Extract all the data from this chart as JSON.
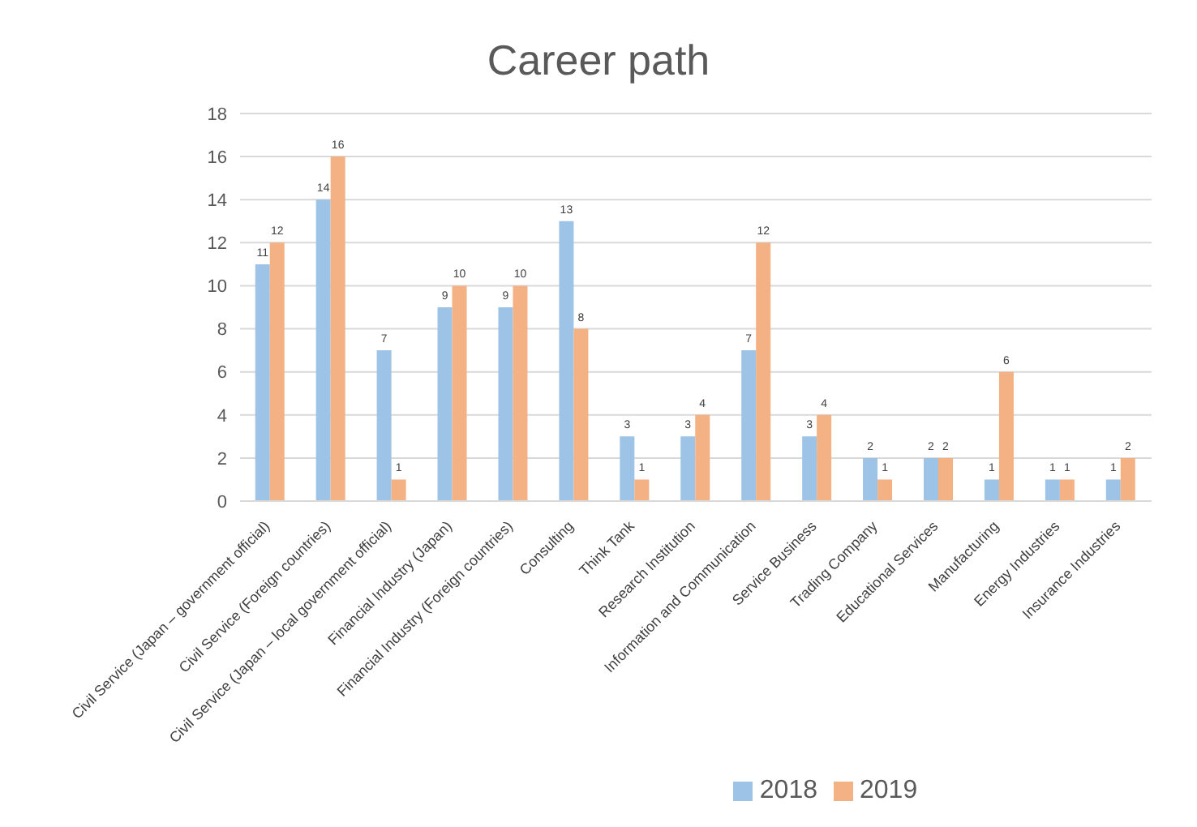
{
  "chart_data": {
    "type": "bar",
    "title": "Career path",
    "categories": [
      "Civil Service (Japan – government official)",
      "Civil Service (Foreign countries)",
      "Civil Service (Japan – local government official)",
      "Financial Industry (Japan)",
      "Financial Industry (Foreign countries)",
      "Consulting",
      "Think Tank",
      "Research Institution",
      "Information and Communication",
      "Service Business",
      "Trading Company",
      "Educational Services",
      "Manufacturing",
      "Energy Industries",
      "Insurance Industries"
    ],
    "series": [
      {
        "name": "2018",
        "color": "#9dc3e6",
        "values": [
          11,
          14,
          7,
          9,
          9,
          13,
          3,
          3,
          7,
          3,
          2,
          2,
          1,
          1,
          1
        ]
      },
      {
        "name": "2019",
        "color": "#f4b183",
        "values": [
          12,
          16,
          1,
          10,
          10,
          8,
          1,
          4,
          12,
          4,
          1,
          2,
          6,
          1,
          2
        ]
      }
    ],
    "ylim": [
      0,
      18
    ],
    "yticks": [
      0,
      2,
      4,
      6,
      8,
      10,
      12,
      14,
      16,
      18
    ],
    "grid": "y",
    "legend": "bottom",
    "data_labels": true
  }
}
